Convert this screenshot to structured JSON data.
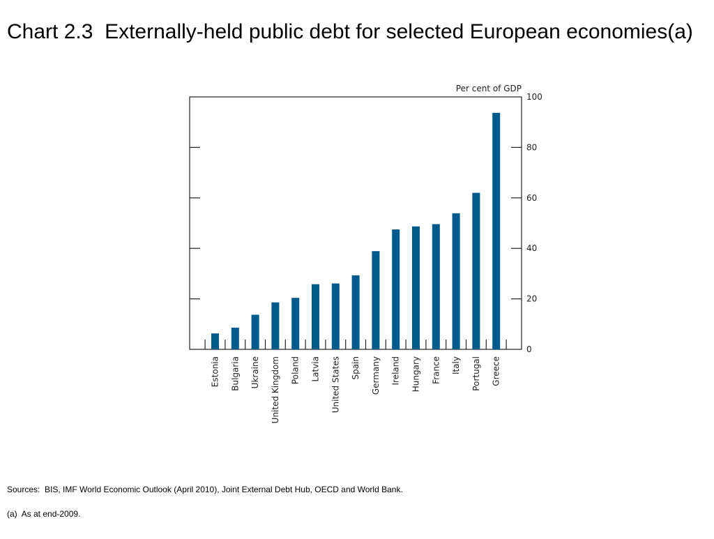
{
  "slide": {
    "title": "Chart 2.3  Externally-held public debt for selected European economies(a)",
    "sources": "Sources:  BIS, IMF World Economic Outlook (April 2010), Joint External Debt Hub, OECD and World Bank.",
    "footnote": "(a)  As at end-2009."
  },
  "chart_data": {
    "type": "bar",
    "title": "",
    "xlabel": "",
    "ylabel": "Per cent of GDP",
    "ylim": [
      0,
      100
    ],
    "yticks": [
      0,
      20,
      40,
      60,
      80,
      100
    ],
    "grid": false,
    "legend": "none",
    "bar_color": "#005a8c",
    "categories": [
      "Estonia",
      "Bulgaria",
      "Ukraine",
      "United Kingdom",
      "Poland",
      "Latvia",
      "United States",
      "Spain",
      "Germany",
      "Ireland",
      "Hungary",
      "France",
      "Italy",
      "Portugal",
      "Greece"
    ],
    "values": [
      6.3,
      8.6,
      13.7,
      18.6,
      20.4,
      25.8,
      26.1,
      29.3,
      38.9,
      47.5,
      48.7,
      49.6,
      53.9,
      62.0,
      93.7
    ]
  }
}
